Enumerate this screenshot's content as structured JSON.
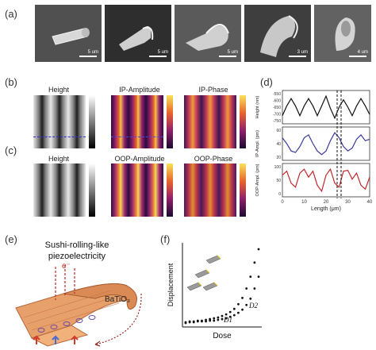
{
  "panel_labels": {
    "a": "(a)",
    "b": "(b)",
    "c": "(c)",
    "d": "(d)",
    "e": "(e)",
    "f": "(f)"
  },
  "sem_scalebars": [
    "5 um",
    "5 um",
    "5 um",
    "3 um",
    "4 um"
  ],
  "maps": {
    "b": [
      "Height",
      "IP-Amplitude",
      "IP-Phase"
    ],
    "c": [
      "Height",
      "OOP-Amplitude",
      "OOP-Phase"
    ]
  },
  "chart_data": [
    {
      "type": "line",
      "panel": "d",
      "xlabel": "Length (μm)",
      "xlim": [
        0,
        40
      ],
      "x_ticks": [
        "0",
        "10",
        "20",
        "30",
        "40"
      ],
      "subplots": [
        {
          "ylabel": "Height (nm)",
          "y_ticks": [
            "-550",
            "-600",
            "-650",
            "-700",
            "-750"
          ],
          "color": "#111111",
          "x": [
            0,
            2,
            4,
            6,
            8,
            10,
            12,
            14,
            16,
            18,
            20,
            22,
            24,
            26,
            28,
            30,
            32,
            34,
            36,
            38,
            40
          ],
          "y": [
            -720,
            -640,
            -580,
            -640,
            -720,
            -640,
            -580,
            -640,
            -720,
            -640,
            -560,
            -660,
            -740,
            -650,
            -590,
            -650,
            -720,
            -640,
            -580,
            -640,
            -710
          ]
        },
        {
          "ylabel": "IP-Ampl. (pm)",
          "y_ticks": [
            "60",
            "40",
            "20"
          ],
          "color": "#3b3b9a",
          "x": [
            0,
            2,
            4,
            6,
            8,
            10,
            12,
            14,
            16,
            18,
            20,
            22,
            24,
            26,
            28,
            30,
            32,
            34,
            36,
            38,
            40
          ],
          "y": [
            48,
            40,
            30,
            28,
            36,
            48,
            52,
            40,
            30,
            25,
            30,
            44,
            55,
            48,
            36,
            30,
            34,
            46,
            52,
            44,
            46
          ]
        },
        {
          "ylabel": "OOP-Ampl. (pm)",
          "y_ticks": [
            "100",
            "50",
            "0"
          ],
          "color": "#c0282b",
          "x": [
            0,
            2,
            4,
            6,
            8,
            10,
            12,
            14,
            16,
            18,
            20,
            22,
            24,
            26,
            28,
            30,
            32,
            34,
            36,
            38,
            40
          ],
          "y": [
            60,
            70,
            40,
            30,
            65,
            75,
            55,
            70,
            35,
            20,
            60,
            75,
            40,
            30,
            70,
            72,
            50,
            65,
            35,
            25,
            55
          ]
        }
      ]
    },
    {
      "type": "scatter",
      "panel": "f",
      "xlabel": "Dose",
      "ylabel": "Displacement",
      "annotations": [
        "D1",
        "D2"
      ],
      "series": [
        {
          "x": [
            0,
            5,
            10,
            15,
            20,
            25,
            30,
            35,
            40,
            45,
            50,
            55,
            60,
            65,
            70,
            75,
            80,
            85,
            90
          ],
          "y": [
            2,
            3,
            3,
            4,
            4,
            5,
            6,
            7,
            8,
            10,
            12,
            15,
            19,
            25,
            33,
            45,
            60,
            78,
            95
          ]
        },
        {
          "x": [
            0,
            5,
            10,
            15,
            20,
            25,
            30,
            35,
            40,
            45,
            50,
            55,
            60,
            65,
            70,
            75,
            80,
            85,
            90
          ],
          "y": [
            1,
            2,
            2,
            3,
            3,
            3,
            4,
            4,
            5,
            6,
            7,
            9,
            11,
            14,
            18,
            24,
            32,
            45,
            60
          ]
        }
      ]
    }
  ],
  "diagram_e": {
    "title_line1": "Sushi-rolling-like",
    "title_line2": "piezoelectricity",
    "electron": "e⁻",
    "material": "BaTiO₃"
  }
}
